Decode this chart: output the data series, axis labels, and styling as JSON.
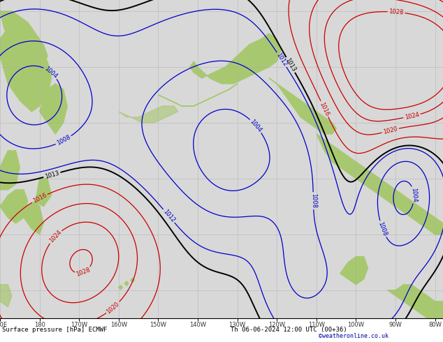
{
  "title_left": "Surface pressure [hPa] ECMWF",
  "title_right": "Th 06-06-2024 12:00 UTC (00+36)",
  "credit": "©weatheronline.co.uk",
  "bg_color": "#d8d8d8",
  "land_color": "#a8c870",
  "grid_color": "#aaaaaa",
  "contour_black": "#000000",
  "contour_blue": "#0000cc",
  "contour_red": "#cc0000",
  "figsize": [
    6.34,
    4.9
  ],
  "dpi": 100,
  "bottom_text_color": "#000000",
  "credit_color": "#0000aa",
  "xtick_positions": [
    170,
    180,
    190,
    200,
    210,
    220,
    230,
    240,
    250,
    260,
    270,
    280
  ],
  "xtick_labels": [
    "170E",
    "180",
    "170W",
    "160W",
    "150W",
    "140W",
    "130W",
    "120W",
    "110W",
    "100W",
    "90W",
    "80W"
  ]
}
